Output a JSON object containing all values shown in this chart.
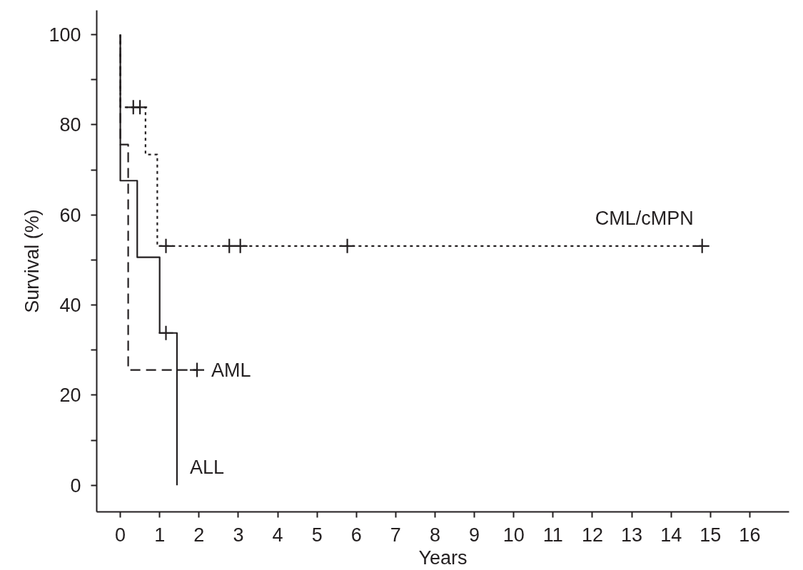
{
  "chart_data": {
    "type": "step",
    "xlabel": "Years",
    "ylabel": "Survival (%)",
    "xlim": [
      -0.6,
      17.0
    ],
    "ylim": [
      -5.9,
      105.4
    ],
    "xticks": [
      0,
      1,
      2,
      3,
      4,
      5,
      6,
      7,
      8,
      9,
      10,
      11,
      12,
      13,
      14,
      15,
      16
    ],
    "yticks": [
      0,
      {
        "value": 10,
        "label": null
      },
      20,
      {
        "value": 30,
        "label": null
      },
      40,
      {
        "value": 50,
        "label": null
      },
      60,
      {
        "value": 70,
        "label": null
      },
      80,
      {
        "value": 90,
        "label": null
      },
      100
    ],
    "grid": false,
    "series": [
      {
        "color": "#231f20",
        "line_style": "solid",
        "x": [
          0,
          0,
          0.43,
          1.0,
          1.44
        ],
        "values": [
          100,
          67.6,
          50.6,
          33.8,
          0
        ]
      },
      {
        "color": "#231f20",
        "line_style": "dashed",
        "x": [
          0,
          0,
          0.2,
          1.95
        ],
        "values": [
          100,
          75.6,
          25.6,
          25.6
        ]
      },
      {
        "color": "#231f20",
        "line_style": "dotted",
        "x": [
          0,
          0,
          0.64,
          0.94,
          14.79
        ],
        "values": [
          100,
          83.9,
          73.4,
          53.1,
          53.1
        ]
      },
      {
        "type": "scatter",
        "color": "#231f20",
        "marker": "cross",
        "x": [
          1.16
        ],
        "values": [
          33.8
        ]
      },
      {
        "type": "scatter",
        "color": "#231f20",
        "marker": "cross",
        "x": [
          1.95
        ],
        "values": [
          25.6
        ]
      },
      {
        "type": "scatter",
        "color": "#231f20",
        "marker": "cross",
        "x": [
          0.33,
          0.5,
          1.16,
          2.77,
          3.05,
          5.77,
          14.79
        ],
        "values": [
          83.9,
          83.9,
          53.1,
          53.1,
          53.1,
          53.1,
          53.1
        ]
      }
    ],
    "annotations": [
      {
        "text": "ALL",
        "x": 1.44,
        "y": 0
      },
      {
        "text": "AML",
        "x": 1.95,
        "y": 25.6
      },
      {
        "text": "CML/cMPN",
        "x": 14.79,
        "y": 53.1
      }
    ]
  }
}
